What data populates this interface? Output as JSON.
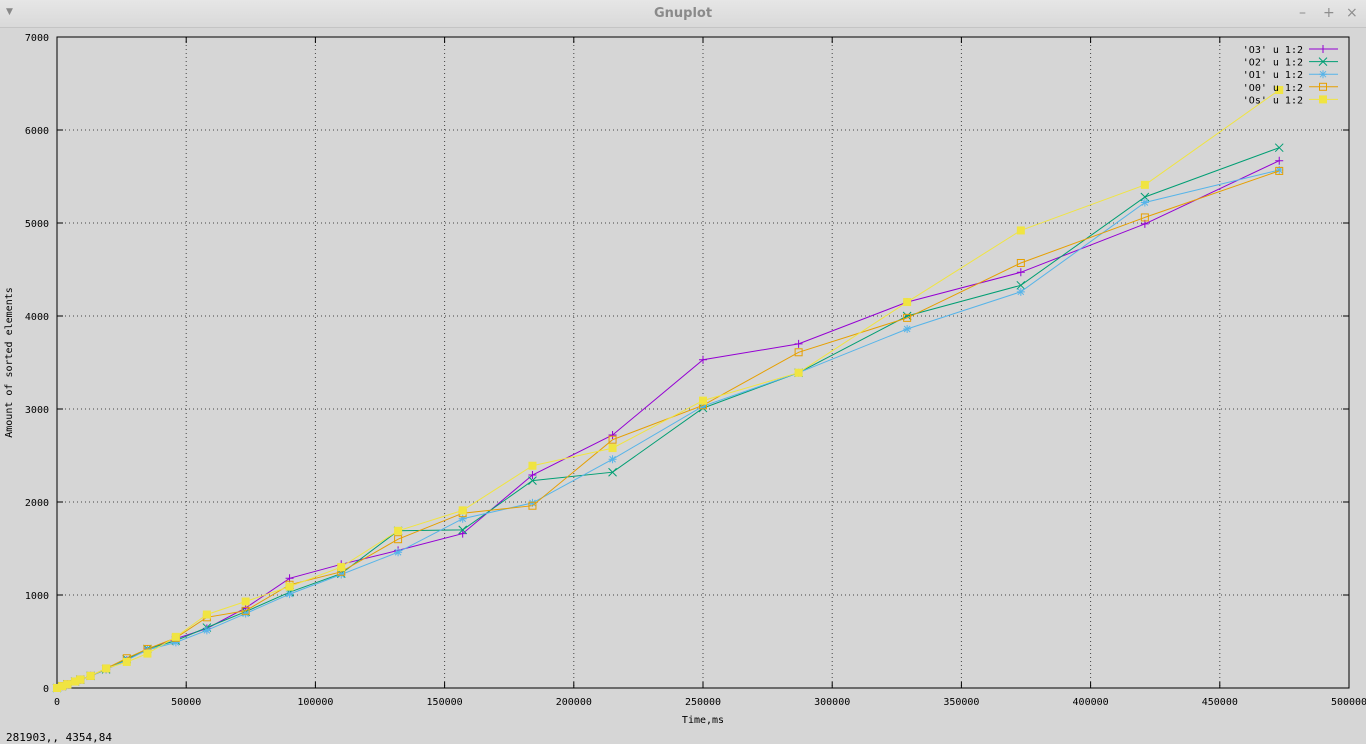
{
  "window": {
    "title": "Gnuplot",
    "menu_glyph": "▼",
    "minimize_glyph": "–",
    "maximize_glyph": "+",
    "close_glyph": "×"
  },
  "status": {
    "text": "281903,,  4354,84"
  },
  "chart_data": {
    "type": "line",
    "title": "",
    "xlabel": "Time,ms",
    "ylabel": "Amount of sorted elements",
    "xlim": [
      0,
      500000
    ],
    "ylim": [
      0,
      7000
    ],
    "xticks": [
      0,
      50000,
      100000,
      150000,
      200000,
      250000,
      300000,
      350000,
      400000,
      450000,
      500000
    ],
    "yticks": [
      0,
      1000,
      2000,
      3000,
      4000,
      5000,
      6000,
      7000
    ],
    "grid": true,
    "legend_position": "top-right",
    "series": [
      {
        "name": "'O3' u 1:2",
        "color": "#9400d3",
        "marker": "plus",
        "points": [
          [
            0,
            0
          ],
          [
            2000,
            20
          ],
          [
            4000,
            40
          ],
          [
            7000,
            70
          ],
          [
            9000,
            90
          ],
          [
            13000,
            130
          ],
          [
            19000,
            200
          ],
          [
            27000,
            300
          ],
          [
            35000,
            420
          ],
          [
            46000,
            530
          ],
          [
            58000,
            640
          ],
          [
            73000,
            860
          ],
          [
            90000,
            1180
          ],
          [
            110000,
            1330
          ],
          [
            132000,
            1480
          ],
          [
            157000,
            1660
          ],
          [
            184000,
            2290
          ],
          [
            215000,
            2720
          ],
          [
            250000,
            3530
          ],
          [
            287000,
            3700
          ],
          [
            329000,
            4150
          ],
          [
            373000,
            4470
          ],
          [
            421000,
            4990
          ],
          [
            473000,
            5670
          ]
        ]
      },
      {
        "name": "'O2' u 1:2",
        "color": "#009e73",
        "marker": "cross",
        "points": [
          [
            0,
            0
          ],
          [
            2000,
            20
          ],
          [
            4000,
            40
          ],
          [
            7000,
            70
          ],
          [
            9000,
            90
          ],
          [
            13000,
            130
          ],
          [
            19000,
            200
          ],
          [
            27000,
            310
          ],
          [
            35000,
            420
          ],
          [
            46000,
            510
          ],
          [
            58000,
            650
          ],
          [
            73000,
            820
          ],
          [
            90000,
            1030
          ],
          [
            110000,
            1230
          ],
          [
            132000,
            1690
          ],
          [
            157000,
            1700
          ],
          [
            184000,
            2230
          ],
          [
            215000,
            2320
          ],
          [
            250000,
            3010
          ],
          [
            287000,
            3390
          ],
          [
            329000,
            4000
          ],
          [
            373000,
            4330
          ],
          [
            421000,
            5280
          ],
          [
            473000,
            5810
          ]
        ]
      },
      {
        "name": "'O1' u 1:2",
        "color": "#56b4e9",
        "marker": "star",
        "points": [
          [
            0,
            0
          ],
          [
            2000,
            20
          ],
          [
            4000,
            40
          ],
          [
            7000,
            70
          ],
          [
            9000,
            90
          ],
          [
            13000,
            130
          ],
          [
            19000,
            200
          ],
          [
            27000,
            300
          ],
          [
            35000,
            410
          ],
          [
            46000,
            490
          ],
          [
            58000,
            620
          ],
          [
            73000,
            800
          ],
          [
            90000,
            1010
          ],
          [
            110000,
            1220
          ],
          [
            132000,
            1460
          ],
          [
            157000,
            1820
          ],
          [
            184000,
            1990
          ],
          [
            215000,
            2460
          ],
          [
            250000,
            3030
          ],
          [
            287000,
            3390
          ],
          [
            329000,
            3860
          ],
          [
            373000,
            4260
          ],
          [
            421000,
            5220
          ],
          [
            473000,
            5570
          ]
        ]
      },
      {
        "name": "'O0' u 1:2",
        "color": "#e69f00",
        "marker": "square",
        "points": [
          [
            0,
            0
          ],
          [
            2000,
            20
          ],
          [
            4000,
            40
          ],
          [
            7000,
            70
          ],
          [
            9000,
            90
          ],
          [
            13000,
            130
          ],
          [
            19000,
            210
          ],
          [
            27000,
            320
          ],
          [
            35000,
            420
          ],
          [
            46000,
            540
          ],
          [
            58000,
            760
          ],
          [
            73000,
            830
          ],
          [
            90000,
            1110
          ],
          [
            110000,
            1250
          ],
          [
            132000,
            1600
          ],
          [
            157000,
            1880
          ],
          [
            184000,
            1960
          ],
          [
            215000,
            2670
          ],
          [
            250000,
            3040
          ],
          [
            287000,
            3610
          ],
          [
            329000,
            3980
          ],
          [
            373000,
            4570
          ],
          [
            421000,
            5060
          ],
          [
            473000,
            5560
          ]
        ]
      },
      {
        "name": "'Os' u 1:2",
        "color": "#f0e442",
        "marker": "filled-square",
        "points": [
          [
            0,
            0
          ],
          [
            2000,
            20
          ],
          [
            4000,
            40
          ],
          [
            7000,
            70
          ],
          [
            9000,
            90
          ],
          [
            13000,
            130
          ],
          [
            19000,
            210
          ],
          [
            27000,
            280
          ],
          [
            35000,
            370
          ],
          [
            46000,
            550
          ],
          [
            58000,
            790
          ],
          [
            73000,
            930
          ],
          [
            90000,
            1090
          ],
          [
            110000,
            1300
          ],
          [
            132000,
            1690
          ],
          [
            157000,
            1910
          ],
          [
            184000,
            2390
          ],
          [
            215000,
            2580
          ],
          [
            250000,
            3090
          ],
          [
            287000,
            3390
          ],
          [
            329000,
            4150
          ],
          [
            373000,
            4920
          ],
          [
            421000,
            5410
          ],
          [
            473000,
            6430
          ]
        ]
      }
    ]
  }
}
